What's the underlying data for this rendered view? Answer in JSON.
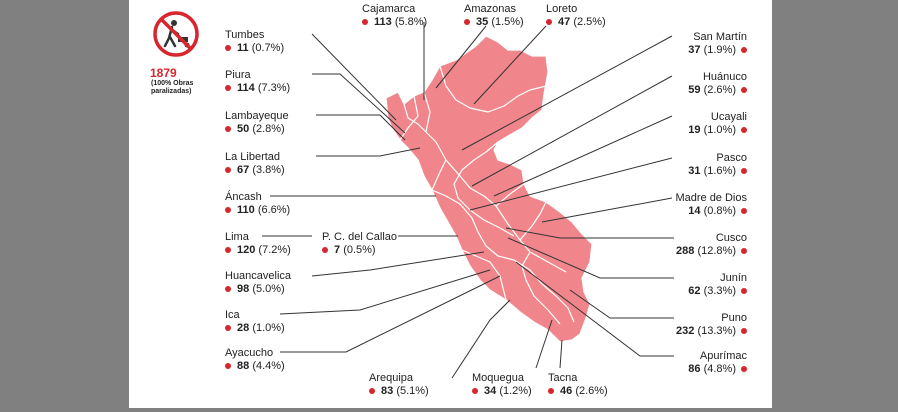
{
  "badge": {
    "icon": "no-construction-icon",
    "total": "1879",
    "note": "(100% Obras paralizadas)"
  },
  "colors": {
    "map_fill": "#f0868b",
    "accent": "#d7262d",
    "border": "#ffffff",
    "background": "#808080",
    "panel": "#ffffff"
  },
  "regions": {
    "tumbes": {
      "name": "Tumbes",
      "value": "11",
      "pct": "(0.7%)"
    },
    "piura": {
      "name": "Piura",
      "value": "114",
      "pct": "(7.3%)"
    },
    "lambayeque": {
      "name": "Lambayeque",
      "value": "50",
      "pct": "(2.8%)"
    },
    "lalibertad": {
      "name": "La Libertad",
      "value": "67",
      "pct": "(3.8%)"
    },
    "ancash": {
      "name": "Áncash",
      "value": "110",
      "pct": "(6.6%)"
    },
    "lima": {
      "name": "Lima",
      "value": "120",
      "pct": "(7.2%)"
    },
    "callao": {
      "name": "P. C. del Callao",
      "value": "7",
      "pct": "(0.5%)"
    },
    "huancavelica": {
      "name": "Huancavelica",
      "value": "98",
      "pct": "(5.0%)"
    },
    "ica": {
      "name": "Ica",
      "value": "28",
      "pct": "(1.0%)"
    },
    "ayacucho": {
      "name": "Ayacucho",
      "value": "88",
      "pct": "(4.4%)"
    },
    "arequipa": {
      "name": "Arequipa",
      "value": "83",
      "pct": "(5.1%)"
    },
    "moquegua": {
      "name": "Moquegua",
      "value": "34",
      "pct": "(1.2%)"
    },
    "tacna": {
      "name": "Tacna",
      "value": "46",
      "pct": "(2.6%)"
    },
    "cajamarca": {
      "name": "Cajamarca",
      "value": "113",
      "pct": "(5.8%)"
    },
    "amazonas": {
      "name": "Amazonas",
      "value": "35",
      "pct": "(1.5%)"
    },
    "loreto": {
      "name": "Loreto",
      "value": "47",
      "pct": "(2.5%)"
    },
    "sanmartin": {
      "name": "San Martín",
      "value": "37",
      "pct": "(1.9%)"
    },
    "huanuco": {
      "name": "Huánuco",
      "value": "59",
      "pct": "(2.6%)"
    },
    "ucayali": {
      "name": "Ucayali",
      "value": "19",
      "pct": "(1.0%)"
    },
    "pasco": {
      "name": "Pasco",
      "value": "31",
      "pct": "(1.6%)"
    },
    "madrededios": {
      "name": "Madre de Dios",
      "value": "14",
      "pct": "(0.8%)"
    },
    "cusco": {
      "name": "Cusco",
      "value": "288",
      "pct": "(12.8%)"
    },
    "junin": {
      "name": "Junín",
      "value": "62",
      "pct": "(3.3%)"
    },
    "puno": {
      "name": "Puno",
      "value": "232",
      "pct": "(13.3%)"
    },
    "apurimac": {
      "name": "Apurímac",
      "value": "86",
      "pct": "(4.8%)"
    }
  }
}
